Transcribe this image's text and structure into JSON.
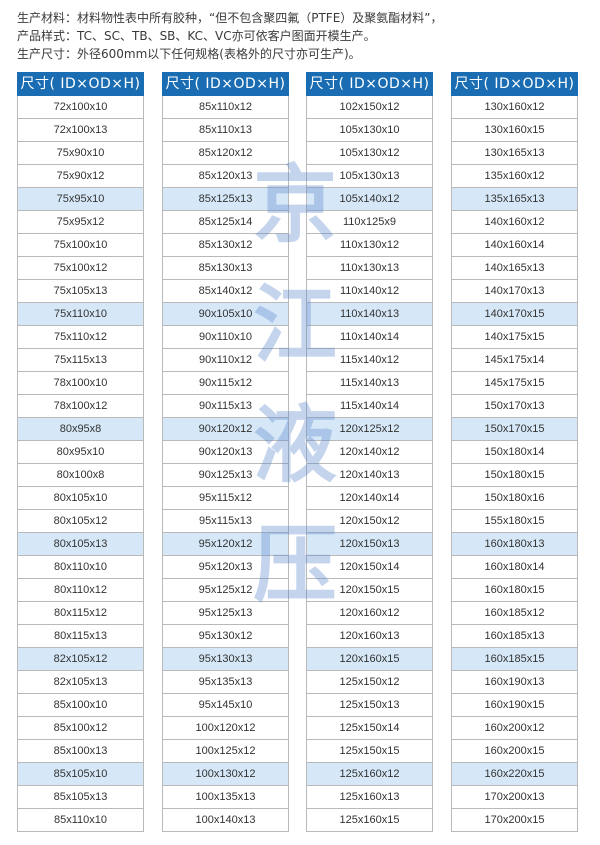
{
  "notes": [
    "生产材料：材料物性表中所有胶种，“但不包含聚四氟（PTFE）及聚氨酯材料”，",
    "产品样式：TC、SC、TB、SB、KC、VC亦可依客户图面开模生产。",
    "生产尺寸：外径600mm以下任何规格(表格外的尺寸亦可生产)。"
  ],
  "table_header": "尺寸( ID×OD×H)",
  "highlight_color": "#d6e8f7",
  "header_color": "#1b6db3",
  "watermark": "京江液压",
  "columns": [
    [
      "72x100x10",
      "72x100x13",
      "75x90x10",
      "75x90x12",
      "75x95x10",
      "75x95x12",
      "75x100x10",
      "75x100x12",
      "75x105x13",
      "75x110x10",
      "75x110x12",
      "75x115x13",
      "78x100x10",
      "78x100x12",
      "80x95x8",
      "80x95x10",
      "80x100x8",
      "80x105x10",
      "80x105x12",
      "80x105x13",
      "80x110x10",
      "80x110x12",
      "80x115x12",
      "80x115x13",
      "82x105x12",
      "82x105x13",
      "85x100x10",
      "85x100x12",
      "85x100x13",
      "85x105x10",
      "85x105x13",
      "85x110x10"
    ],
    [
      "85x110x12",
      "85x110x13",
      "85x120x12",
      "85x120x13",
      "85x125x13",
      "85x125x14",
      "85x130x12",
      "85x130x13",
      "85x140x12",
      "90x105x10",
      "90x110x10",
      "90x110x12",
      "90x115x12",
      "90x115x13",
      "90x120x12",
      "90x120x13",
      "90x125x13",
      "95x115x12",
      "95x115x13",
      "95x120x12",
      "95x120x13",
      "95x125x12",
      "95x125x13",
      "95x130x12",
      "95x130x13",
      "95x135x13",
      "95x145x10",
      "100x120x12",
      "100x125x12",
      "100x130x12",
      "100x135x13",
      "100x140x13"
    ],
    [
      "102x150x12",
      "105x130x10",
      "105x130x12",
      "105x130x13",
      "105x140x12",
      "110x125x9",
      "110x130x12",
      "110x130x13",
      "110x140x12",
      "110x140x13",
      "110x140x14",
      "115x140x12",
      "115x140x13",
      "115x140x14",
      "120x125x12",
      "120x140x12",
      "120x140x13",
      "120x140x14",
      "120x150x12",
      "120x150x13",
      "120x150x14",
      "120x150x15",
      "120x160x12",
      "120x160x13",
      "120x160x15",
      "125x150x12",
      "125x150x13",
      "125x150x14",
      "125x150x15",
      "125x160x12",
      "125x160x13",
      "125x160x15"
    ],
    [
      "130x160x12",
      "130x160x15",
      "130x165x13",
      "135x160x12",
      "135x165x13",
      "140x160x12",
      "140x160x14",
      "140x165x13",
      "140x170x13",
      "140x170x15",
      "140x175x15",
      "145x175x14",
      "145x175x15",
      "150x170x13",
      "150x170x15",
      "150x180x14",
      "150x180x15",
      "150x180x16",
      "155x180x15",
      "160x180x13",
      "160x180x14",
      "160x180x15",
      "160x185x12",
      "160x185x13",
      "160x185x15",
      "160x190x13",
      "160x190x15",
      "160x200x12",
      "160x200x15",
      "160x220x15",
      "170x200x13",
      "170x200x15"
    ]
  ]
}
